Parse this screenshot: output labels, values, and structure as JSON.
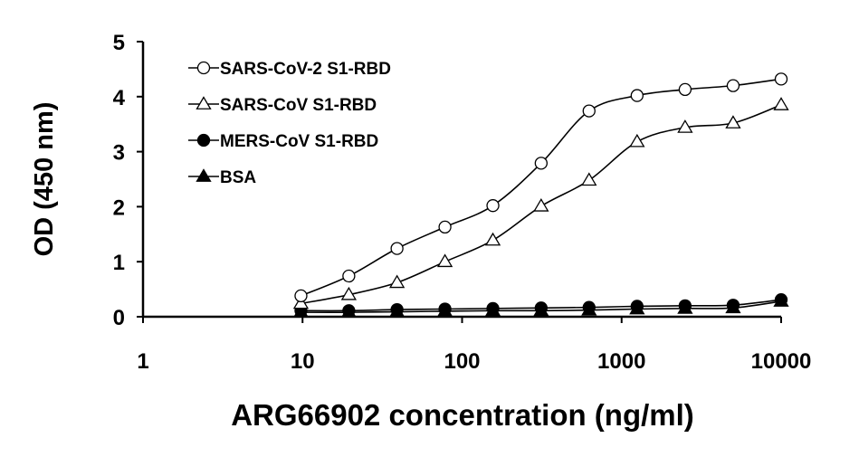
{
  "chart_data": {
    "type": "line",
    "xlabel": "ARG66902 concentration (ng/ml)",
    "ylabel": "OD (450 nm)",
    "xscale": "log",
    "xlim": [
      1,
      10000
    ],
    "ylim": [
      0,
      5
    ],
    "xticks": [
      1,
      10,
      100,
      1000,
      10000
    ],
    "xtick_labels": [
      "1",
      "10",
      "100",
      "1000",
      "10000"
    ],
    "yticks": [
      0,
      1,
      2,
      3,
      4,
      5
    ],
    "ytick_labels": [
      "0",
      "1",
      "2",
      "3",
      "4",
      "5"
    ],
    "legend_position": "top-left",
    "grid": false,
    "x": [
      9.77,
      19.5,
      39.1,
      78.1,
      156,
      313,
      625,
      1250,
      2500,
      5000,
      10000
    ],
    "series": [
      {
        "name": "SARS-CoV-2 S1-RBD",
        "marker": "circle-open",
        "values": [
          0.38,
          0.74,
          1.24,
          1.63,
          2.02,
          2.79,
          3.74,
          4.02,
          4.13,
          4.2,
          4.32
        ]
      },
      {
        "name": "SARS-CoV S1-RBD",
        "marker": "triangle-open",
        "values": [
          0.24,
          0.4,
          0.62,
          1.0,
          1.39,
          2.01,
          2.48,
          3.18,
          3.44,
          3.52,
          3.85
        ]
      },
      {
        "name": "MERS-CoV S1-RBD",
        "marker": "circle-filled",
        "values": [
          0.11,
          0.11,
          0.13,
          0.14,
          0.15,
          0.16,
          0.17,
          0.19,
          0.2,
          0.21,
          0.31
        ]
      },
      {
        "name": "BSA",
        "marker": "triangle-filled",
        "values": [
          0.08,
          0.08,
          0.09,
          0.1,
          0.11,
          0.11,
          0.12,
          0.14,
          0.15,
          0.16,
          0.28
        ]
      }
    ]
  }
}
